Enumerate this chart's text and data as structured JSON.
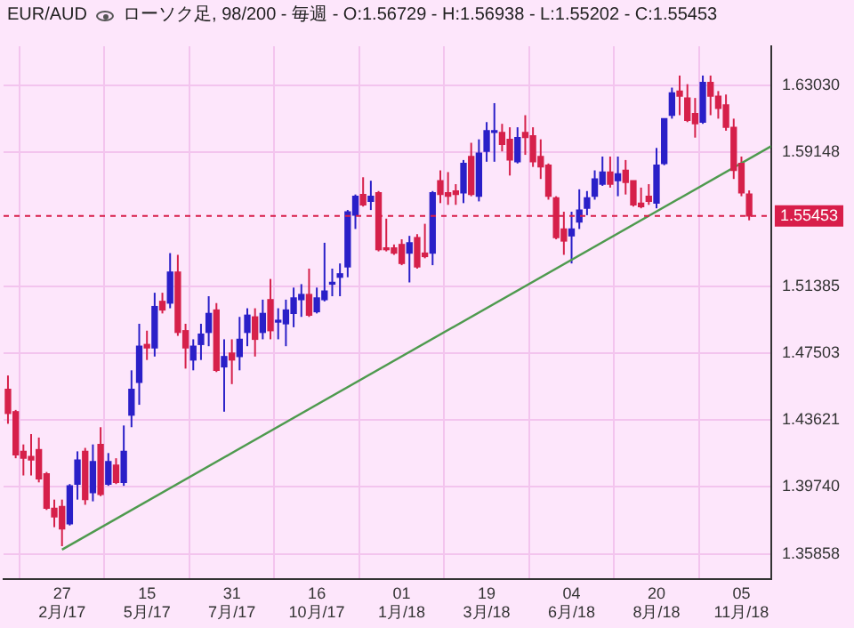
{
  "chart_data": {
    "type": "candlestick",
    "title": "EUR/AUD",
    "subtitle": "ローソク足, 98/200 - 毎週 - O:1.56729 - H:1.56938 - L:1.55202 - C:1.55453",
    "x": [
      "2017-01-09",
      "2017-01-16",
      "2017-01-23",
      "2017-01-30",
      "2017-02-06",
      "2017-02-13",
      "2017-02-20",
      "2017-02-27",
      "2017-03-06",
      "2017-03-13",
      "2017-03-20",
      "2017-03-27",
      "2017-04-03",
      "2017-04-10",
      "2017-04-17",
      "2017-04-24",
      "2017-05-01",
      "2017-05-08",
      "2017-05-15",
      "2017-05-22",
      "2017-05-29",
      "2017-06-05",
      "2017-06-12",
      "2017-06-19",
      "2017-06-26",
      "2017-07-03",
      "2017-07-10",
      "2017-07-17",
      "2017-07-24",
      "2017-07-31",
      "2017-08-07",
      "2017-08-14",
      "2017-08-21",
      "2017-08-28",
      "2017-09-04",
      "2017-09-11",
      "2017-09-18",
      "2017-09-25",
      "2017-10-02",
      "2017-10-09",
      "2017-10-16",
      "2017-10-23",
      "2017-10-30",
      "2017-11-06",
      "2017-11-13",
      "2017-11-20",
      "2017-11-27",
      "2017-12-04",
      "2017-12-11",
      "2017-12-18",
      "2017-12-25",
      "2018-01-01",
      "2018-01-08",
      "2018-01-15",
      "2018-01-22",
      "2018-01-29",
      "2018-02-05",
      "2018-02-12",
      "2018-02-19",
      "2018-02-26",
      "2018-03-05",
      "2018-03-12",
      "2018-03-19",
      "2018-03-26",
      "2018-04-02",
      "2018-04-09",
      "2018-04-16",
      "2018-04-23",
      "2018-04-30",
      "2018-05-07",
      "2018-05-14",
      "2018-05-21",
      "2018-05-28",
      "2018-06-04",
      "2018-06-11",
      "2018-06-18",
      "2018-06-25",
      "2018-07-02",
      "2018-07-09",
      "2018-07-16",
      "2018-07-23",
      "2018-07-30",
      "2018-08-06",
      "2018-08-13",
      "2018-08-20",
      "2018-08-27",
      "2018-09-03",
      "2018-09-10",
      "2018-09-17",
      "2018-09-24",
      "2018-10-01",
      "2018-10-08",
      "2018-10-15",
      "2018-10-22",
      "2018-10-29",
      "2018-11-05",
      "2018-11-12"
    ],
    "ohlc": [
      [
        1.454,
        1.462,
        1.434,
        1.44
      ],
      [
        1.441,
        1.442,
        1.414,
        1.416
      ],
      [
        1.418,
        1.422,
        1.404,
        1.414
      ],
      [
        1.415,
        1.428,
        1.404,
        1.413
      ],
      [
        1.419,
        1.426,
        1.4,
        1.402
      ],
      [
        1.405,
        1.406,
        1.384,
        1.385
      ],
      [
        1.385,
        1.39,
        1.374,
        1.38
      ],
      [
        1.386,
        1.39,
        1.363,
        1.373
      ],
      [
        1.376,
        1.399,
        1.375,
        1.398
      ],
      [
        1.399,
        1.418,
        1.39,
        1.413
      ],
      [
        1.418,
        1.42,
        1.387,
        1.39
      ],
      [
        1.394,
        1.422,
        1.389,
        1.412
      ],
      [
        1.422,
        1.432,
        1.392,
        1.393
      ],
      [
        1.399,
        1.417,
        1.398,
        1.412
      ],
      [
        1.41,
        1.414,
        1.399,
        1.4
      ],
      [
        1.4,
        1.433,
        1.398,
        1.418
      ],
      [
        1.439,
        1.465,
        1.432,
        1.454
      ],
      [
        1.458,
        1.492,
        1.445,
        1.479
      ],
      [
        1.48,
        1.488,
        1.471,
        1.478
      ],
      [
        1.478,
        1.51,
        1.473,
        1.502
      ],
      [
        1.505,
        1.51,
        1.498,
        1.5
      ],
      [
        1.504,
        1.533,
        1.501,
        1.522
      ],
      [
        1.522,
        1.532,
        1.485,
        1.487
      ],
      [
        1.488,
        1.492,
        1.466,
        1.478
      ],
      [
        1.471,
        1.483,
        1.465,
        1.479
      ],
      [
        1.48,
        1.492,
        1.471,
        1.486
      ],
      [
        1.487,
        1.508,
        1.479,
        1.498
      ],
      [
        1.5,
        1.504,
        1.464,
        1.465
      ],
      [
        1.467,
        1.483,
        1.441,
        1.473
      ],
      [
        1.475,
        1.483,
        1.457,
        1.471
      ],
      [
        1.473,
        1.496,
        1.465,
        1.483
      ],
      [
        1.487,
        1.501,
        1.479,
        1.497
      ],
      [
        1.496,
        1.501,
        1.473,
        1.483
      ],
      [
        1.487,
        1.506,
        1.483,
        1.498
      ],
      [
        1.506,
        1.518,
        1.483,
        1.488
      ],
      [
        1.493,
        1.501,
        1.483,
        1.494
      ],
      [
        1.492,
        1.506,
        1.479,
        1.5
      ],
      [
        1.498,
        1.513,
        1.49,
        1.507
      ],
      [
        1.506,
        1.515,
        1.496,
        1.509
      ],
      [
        1.509,
        1.524,
        1.496,
        1.497
      ],
      [
        1.499,
        1.513,
        1.498,
        1.507
      ],
      [
        1.506,
        1.539,
        1.505,
        1.511
      ],
      [
        1.515,
        1.524,
        1.508,
        1.516
      ],
      [
        1.519,
        1.527,
        1.508,
        1.521
      ],
      [
        1.525,
        1.558,
        1.519,
        1.557
      ],
      [
        1.555,
        1.567,
        1.547,
        1.566
      ],
      [
        1.567,
        1.577,
        1.56,
        1.561
      ],
      [
        1.563,
        1.575,
        1.558,
        1.566
      ],
      [
        1.568,
        1.569,
        1.534,
        1.535
      ],
      [
        1.536,
        1.553,
        1.534,
        1.535
      ],
      [
        1.536,
        1.538,
        1.532,
        1.533
      ],
      [
        1.538,
        1.541,
        1.526,
        1.527
      ],
      [
        1.533,
        1.543,
        1.516,
        1.539
      ],
      [
        1.542,
        1.544,
        1.524,
        1.525
      ],
      [
        1.533,
        1.55,
        1.53,
        1.531
      ],
      [
        1.533,
        1.569,
        1.526,
        1.568
      ],
      [
        1.575,
        1.581,
        1.562,
        1.567
      ],
      [
        1.568,
        1.58,
        1.561,
        1.566
      ],
      [
        1.569,
        1.573,
        1.561,
        1.567
      ],
      [
        1.568,
        1.587,
        1.562,
        1.585
      ],
      [
        1.589,
        1.597,
        1.566,
        1.567
      ],
      [
        1.566,
        1.599,
        1.563,
        1.591
      ],
      [
        1.592,
        1.609,
        1.586,
        1.604
      ],
      [
        1.603,
        1.62,
        1.586,
        1.604
      ],
      [
        1.603,
        1.608,
        1.592,
        1.596
      ],
      [
        1.599,
        1.606,
        1.578,
        1.587
      ],
      [
        1.586,
        1.606,
        1.585,
        1.6
      ],
      [
        1.603,
        1.613,
        1.59,
        1.6
      ],
      [
        1.601,
        1.606,
        1.583,
        1.586
      ],
      [
        1.589,
        1.599,
        1.576,
        1.583
      ],
      [
        1.584,
        1.585,
        1.564,
        1.566
      ],
      [
        1.565,
        1.566,
        1.541,
        1.542
      ],
      [
        1.547,
        1.557,
        1.532,
        1.54
      ],
      [
        1.543,
        1.557,
        1.527,
        1.547
      ],
      [
        1.551,
        1.57,
        1.547,
        1.558
      ],
      [
        1.559,
        1.569,
        1.555,
        1.565
      ],
      [
        1.566,
        1.581,
        1.564,
        1.576
      ],
      [
        1.573,
        1.589,
        1.572,
        1.58
      ],
      [
        1.58,
        1.589,
        1.571,
        1.573
      ],
      [
        1.575,
        1.589,
        1.566,
        1.579
      ],
      [
        1.581,
        1.587,
        1.567,
        1.574
      ],
      [
        1.575,
        1.575,
        1.56,
        1.561
      ],
      [
        1.562,
        1.571,
        1.559,
        1.56
      ],
      [
        1.566,
        1.573,
        1.561,
        1.563
      ],
      [
        1.562,
        1.594,
        1.559,
        1.584
      ],
      [
        1.585,
        1.611,
        1.584,
        1.611
      ],
      [
        1.613,
        1.629,
        1.611,
        1.626
      ],
      [
        1.627,
        1.636,
        1.613,
        1.624
      ],
      [
        1.623,
        1.631,
        1.609,
        1.61
      ],
      [
        1.614,
        1.623,
        1.6,
        1.608
      ],
      [
        1.609,
        1.636,
        1.608,
        1.632
      ],
      [
        1.632,
        1.636,
        1.613,
        1.624
      ],
      [
        1.624,
        1.627,
        1.611,
        1.617
      ],
      [
        1.619,
        1.625,
        1.604,
        1.606
      ],
      [
        1.606,
        1.611,
        1.576,
        1.581
      ],
      [
        1.585,
        1.589,
        1.566,
        1.568
      ],
      [
        1.56729,
        1.56938,
        1.55202,
        1.55453
      ]
    ],
    "colors": [
      "#d6204a",
      "#d6204a",
      "#d6204a",
      "#d6204a",
      "#d6204a",
      "#d6204a",
      "#d6204a",
      "#d6204a",
      "#2a1fc8",
      "#2a1fc8",
      "#d6204a",
      "#2a1fc8",
      "#d6204a",
      "#2a1fc8",
      "#d6204a",
      "#2a1fc8",
      "#2a1fc8",
      "#2a1fc8",
      "#d6204a",
      "#2a1fc8",
      "#d6204a",
      "#2a1fc8",
      "#d6204a",
      "#d6204a",
      "#2a1fc8",
      "#2a1fc8",
      "#2a1fc8",
      "#d6204a",
      "#2a1fc8",
      "#d6204a",
      "#2a1fc8",
      "#2a1fc8",
      "#d6204a",
      "#2a1fc8",
      "#d6204a",
      "#2a1fc8",
      "#2a1fc8",
      "#2a1fc8",
      "#2a1fc8",
      "#d6204a",
      "#2a1fc8",
      "#2a1fc8",
      "#2a1fc8",
      "#2a1fc8",
      "#2a1fc8",
      "#2a1fc8",
      "#d6204a",
      "#2a1fc8",
      "#d6204a",
      "#d6204a",
      "#d6204a",
      "#d6204a",
      "#2a1fc8",
      "#d6204a",
      "#d6204a",
      "#2a1fc8",
      "#d6204a",
      "#d6204a",
      "#d6204a",
      "#2a1fc8",
      "#d6204a",
      "#2a1fc8",
      "#2a1fc8",
      "#2a1fc8",
      "#d6204a",
      "#d6204a",
      "#2a1fc8",
      "#d6204a",
      "#d6204a",
      "#d6204a",
      "#d6204a",
      "#d6204a",
      "#d6204a",
      "#2a1fc8",
      "#2a1fc8",
      "#2a1fc8",
      "#2a1fc8",
      "#2a1fc8",
      "#d6204a",
      "#2a1fc8",
      "#d6204a",
      "#d6204a",
      "#d6204a",
      "#d6204a",
      "#2a1fc8",
      "#2a1fc8",
      "#2a1fc8",
      "#d6204a",
      "#d6204a",
      "#d6204a",
      "#2a1fc8",
      "#d6204a",
      "#d6204a",
      "#d6204a",
      "#d6204a",
      "#d6204a",
      "#d6204a"
    ],
    "series": [
      {
        "type": "line",
        "x": [
          "2017-02-27",
          "2018-12-02"
        ],
        "values": [
          1.361,
          1.595
        ],
        "color": "#4e9a4e"
      }
    ],
    "xlim": [
      "2017-01-05",
      "2018-12-02"
    ],
    "xticks": [
      {
        "value": "2017-02-27",
        "label": "27\n2月/17"
      },
      {
        "value": "2017-05-15",
        "label": "15\n5月/17"
      },
      {
        "value": "2017-07-31",
        "label": "31\n7月/17"
      },
      {
        "value": "2017-10-16",
        "label": "16\n10月/17"
      },
      {
        "value": "2018-01-01",
        "label": "01\n1月/18"
      },
      {
        "value": "2018-03-19",
        "label": "19\n3月/18"
      },
      {
        "value": "2018-06-04",
        "label": "04\n6月/18"
      },
      {
        "value": "2018-08-20",
        "label": "20\n8月/18"
      },
      {
        "value": "2018-11-05",
        "label": "05\n11月/18"
      }
    ],
    "ylim": [
      1.344,
      1.653
    ],
    "yticks": [
      {
        "value": 1.6303,
        "label": "1.63030"
      },
      {
        "value": 1.59148,
        "label": "1.59148"
      },
      {
        "value": 1.51385,
        "label": "1.51385"
      },
      {
        "value": 1.47503,
        "label": "1.47503"
      },
      {
        "value": 1.43621,
        "label": "1.43621"
      },
      {
        "value": 1.3974,
        "label": "1.39740"
      },
      {
        "value": 1.35858,
        "label": "1.35858"
      }
    ],
    "ref_lines": [
      {
        "axis": "y",
        "value": 1.55453,
        "label": "1.55453",
        "color": "#d81e4a",
        "line_style": "dashed"
      }
    ],
    "grid": true
  }
}
